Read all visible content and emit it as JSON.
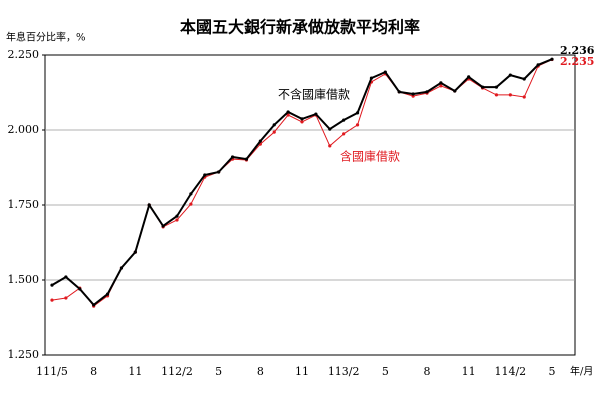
{
  "chart_data": {
    "type": "line",
    "title": "本國五大銀行新承做放款平均利率",
    "y_label": "年息百分比率，%",
    "x_label": "年/月",
    "categories": [
      "111/5",
      null,
      null,
      "8",
      null,
      null,
      "11",
      null,
      null,
      "112/2",
      null,
      null,
      "5",
      null,
      null,
      "8",
      null,
      null,
      "11",
      null,
      null,
      "113/2",
      null,
      null,
      "5",
      null,
      null,
      "8",
      null,
      null,
      "11",
      null,
      null,
      "114/2",
      null,
      null,
      "5"
    ],
    "series": [
      {
        "name": "不含國庫借款",
        "color": "#000000",
        "values": [
          1.483,
          1.51,
          1.47,
          1.417,
          1.453,
          1.54,
          1.593,
          1.75,
          1.68,
          1.713,
          1.787,
          1.85,
          1.86,
          1.91,
          1.903,
          1.963,
          2.017,
          2.06,
          2.037,
          2.053,
          2.003,
          2.033,
          2.057,
          2.173,
          2.193,
          2.127,
          2.12,
          2.127,
          2.157,
          2.13,
          2.177,
          2.143,
          2.143,
          2.183,
          2.17,
          2.217,
          2.236
        ]
      },
      {
        "name": "含國庫借款",
        "color": "#e0191f",
        "values": [
          1.433,
          1.44,
          1.473,
          1.413,
          1.447,
          1.54,
          1.593,
          1.75,
          1.677,
          1.7,
          1.753,
          1.843,
          1.86,
          1.903,
          1.9,
          1.953,
          1.993,
          2.05,
          2.027,
          2.05,
          1.947,
          1.987,
          2.017,
          2.16,
          2.187,
          2.127,
          2.113,
          2.123,
          2.147,
          2.13,
          2.17,
          2.14,
          2.117,
          2.117,
          2.11,
          2.213,
          2.235
        ]
      }
    ],
    "ylim": [
      1.25,
      2.25
    ],
    "yticks": [
      {
        "value": 1.25,
        "label": "1.250"
      },
      {
        "value": 1.5,
        "label": "1.500"
      },
      {
        "value": 1.75,
        "label": "1.750"
      },
      {
        "value": 2.0,
        "label": "2.000"
      },
      {
        "value": 2.25,
        "label": "2.250"
      }
    ],
    "grid": true
  }
}
